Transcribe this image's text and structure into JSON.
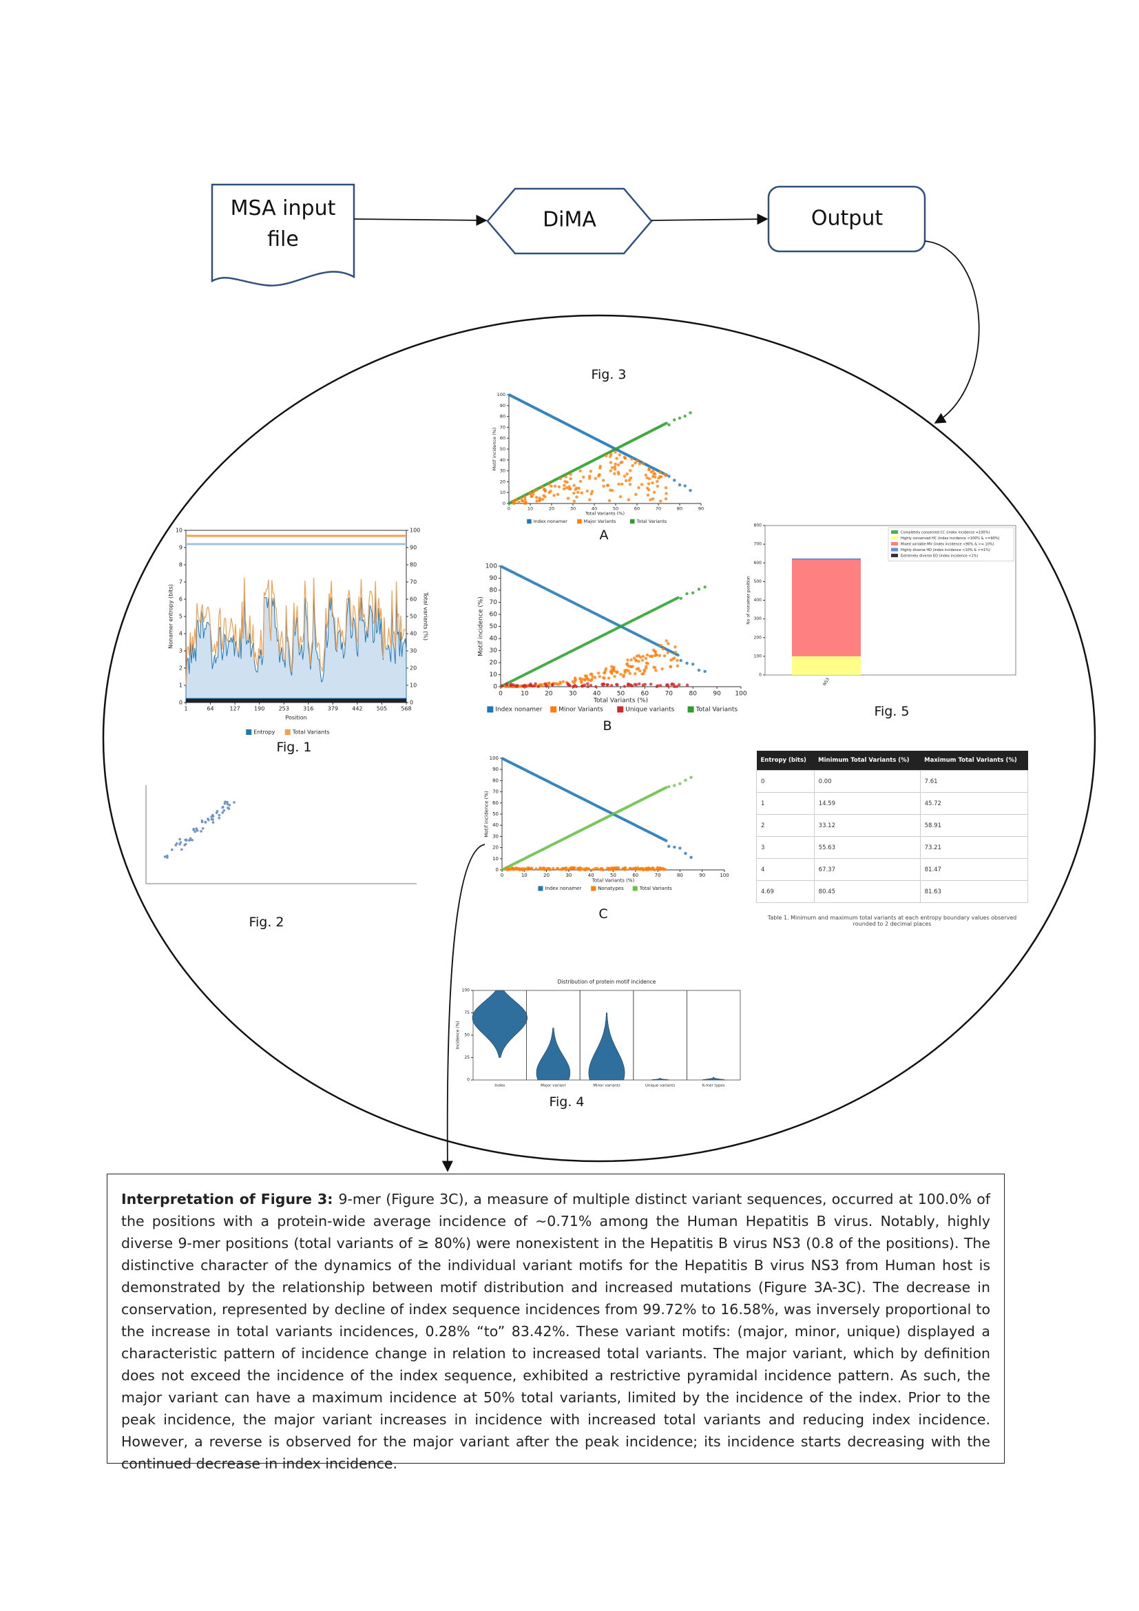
{
  "flowchart": {
    "nodes": [
      {
        "lines": [
          "MSA input",
          "file"
        ]
      },
      {
        "lines": [
          "DiMA"
        ]
      },
      {
        "lines": [
          "Output"
        ]
      }
    ]
  },
  "figure3": {
    "caption": "Fig. 3",
    "panels": {
      "A": {
        "label": "A",
        "ylabel": "Motif incidence (%)",
        "xlabel": "Total Variants (%)",
        "xticks": [
          0,
          10,
          20,
          30,
          40,
          50,
          60,
          70,
          80,
          90
        ],
        "yticks": [
          0,
          10,
          20,
          30,
          40,
          50,
          60,
          70,
          80,
          90,
          100
        ],
        "legend": [
          {
            "name": "Index nonamer",
            "color": "#1f77b4"
          },
          {
            "name": "Major Variants",
            "color": "#ff7f0e"
          },
          {
            "name": "Total Variants",
            "color": "#2ca02c"
          }
        ]
      },
      "B": {
        "label": "B",
        "ylabel": "Motif incidence (%)",
        "xlabel": "Total Variants (%)",
        "xticks": [
          0,
          10,
          20,
          30,
          40,
          50,
          60,
          70,
          80,
          90,
          100
        ],
        "yticks": [
          0,
          10,
          20,
          30,
          40,
          50,
          60,
          70,
          80,
          90,
          100
        ],
        "legend": [
          {
            "name": "Index nonamer",
            "color": "#1f77b4"
          },
          {
            "name": "Minor Variants",
            "color": "#ff7f0e"
          },
          {
            "name": "Unique variants",
            "color": "#d62728"
          },
          {
            "name": "Total Variants",
            "color": "#2ca02c"
          }
        ]
      },
      "C": {
        "label": "C",
        "ylabel": "Motif incidence (%)",
        "xlabel": "Total Variants (%)",
        "xticks": [
          0,
          10,
          20,
          30,
          40,
          50,
          60,
          70,
          80,
          90,
          100
        ],
        "yticks": [
          0,
          10,
          20,
          30,
          40,
          50,
          60,
          70,
          80,
          90,
          100
        ],
        "legend": [
          {
            "name": "Index nonamer",
            "color": "#1f77b4"
          },
          {
            "name": "Nonatypes",
            "color": "#ff7f0e"
          },
          {
            "name": "Total Variants",
            "color": "#6abf4b"
          }
        ]
      }
    }
  },
  "figure1": {
    "caption": "Fig. 1",
    "xlabel": "Position",
    "ylabel": "Nonamer entropy (bits)",
    "y2label": "Total variants (%)",
    "xticks": [
      1,
      64,
      127,
      190,
      253,
      316,
      379,
      442,
      505,
      568
    ],
    "yticks": [
      0,
      1,
      2,
      3,
      4,
      5,
      6,
      7,
      8,
      9,
      10
    ],
    "y2ticks": [
      0,
      10,
      20,
      30,
      40,
      50,
      60,
      70,
      80,
      90,
      100
    ],
    "legend": [
      {
        "name": "Entropy",
        "color": "#1f77b4"
      },
      {
        "name": "Total Variants",
        "color": "#f0a050"
      }
    ]
  },
  "figure2": {
    "caption": "Fig. 2"
  },
  "figure4": {
    "caption": "Fig. 4",
    "title": "Distribution of protein motif incidence",
    "ylabel": "Incidence (%)",
    "yticks": [
      0,
      25,
      50,
      75,
      100
    ],
    "color": "#2e6f9e",
    "categories": [
      "Index",
      "Major variant",
      "Minor variants",
      "Unique variants",
      "K-mer types"
    ]
  },
  "figure5": {
    "caption": "Fig. 5",
    "ylabel": "No of nonamer position",
    "category": "NS3",
    "yticks": [
      0,
      100,
      200,
      300,
      400,
      500,
      600,
      700,
      800
    ],
    "legend": [
      {
        "name": "Completely conserved CC (index incidence =100%)",
        "color": "#4caf50"
      },
      {
        "name": "Highly conserved HC (index incidence <100% & >=90%)",
        "color": "#ffff88"
      },
      {
        "name": "Mixed variable MV (index incidence <90% & >= 10%)",
        "color": "#ff8080"
      },
      {
        "name": "Highly diverse HD (index incidence <10% & >=1%)",
        "color": "#6a8cd6"
      },
      {
        "name": "Extremely diverse ED (index incidence <1%)",
        "color": "#333333"
      }
    ]
  },
  "table1": {
    "headers": [
      "Entropy (bits)",
      "Minimum Total Variants (%)",
      "Maximum Total Variants (%)"
    ],
    "rows": [
      [
        "0",
        "0.00",
        "7.61"
      ],
      [
        "1",
        "14.59",
        "45.72"
      ],
      [
        "2",
        "33.12",
        "58.91"
      ],
      [
        "3",
        "55.63",
        "73.21"
      ],
      [
        "4",
        "67.37",
        "81.47"
      ],
      [
        "4.69",
        "80.45",
        "81.63"
      ]
    ],
    "caption": "Table 1. Minimum and maximum total variants at each entropy boundary values observed rounded to 2 decimal places"
  },
  "interpretation": {
    "title": "Interpretation of Figure 3:",
    "body": "9-mer (Figure 3C), a measure of multiple distinct variant sequences, occurred at 100.0% of the positions with a protein-wide average incidence of ~0.71% among the Human Hepatitis B virus. Notably, highly diverse 9-mer positions (total variants of ≥ 80%) were nonexistent in the Hepatitis B virus NS3 (0.8 of the positions). The distinctive character of the dynamics of the individual variant motifs for the Hepatitis B virus NS3 from Human host is demonstrated by the relationship between motif distribution and increased mutations (Figure 3A-3C). The decrease in conservation, represented by decline of index sequence incidences from 99.72% to 16.58%, was inversely proportional to the increase in total variants incidences, 0.28% “to” 83.42%. These variant motifs: (major, minor, unique) displayed a characteristic pattern of incidence change in relation to increased total variants. The major variant, which by definition does not exceed the incidence of the index sequence, exhibited a restrictive pyramidal incidence pattern. As such, the major variant can have a maximum incidence at 50% total variants, limited by the incidence of the index. Prior to the peak incidence, the major variant increases in incidence with increased total variants and reducing index incidence. However, a reverse is observed for the major variant after the peak incidence; its incidence starts decreasing with the continued decrease in index incidence."
  }
}
